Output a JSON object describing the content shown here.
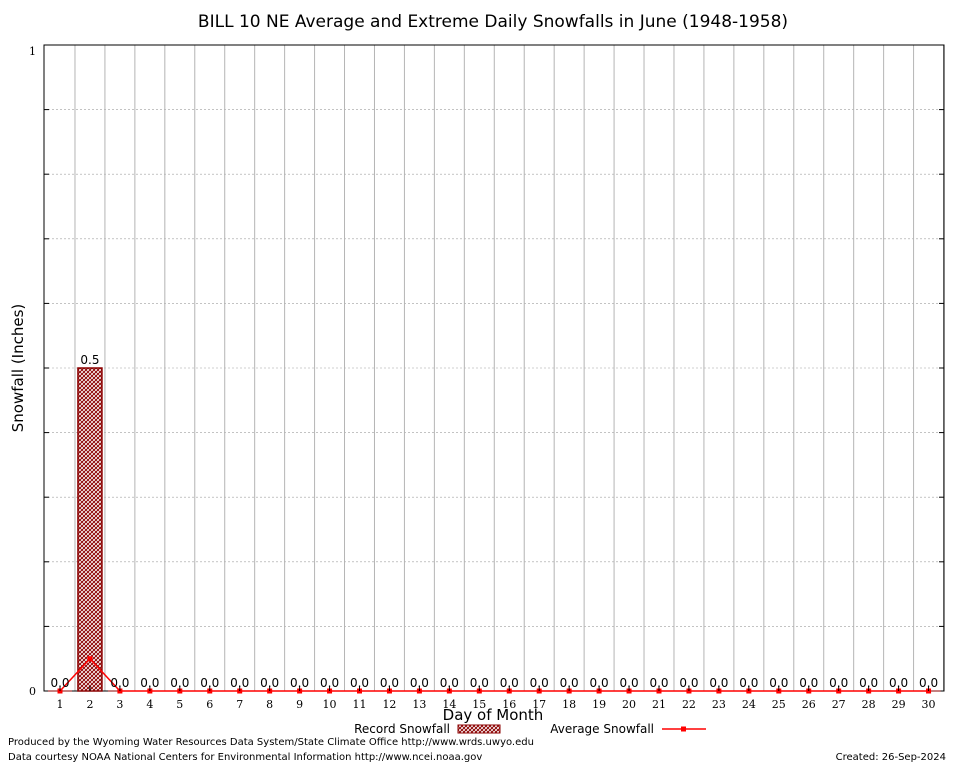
{
  "chart_data": {
    "type": "bar",
    "title": "BILL 10 NE Average and Extreme Daily Snowfalls in June (1948-1958)",
    "xlabel": "Day of Month",
    "ylabel": "Snowfall (Inches)",
    "ylim": [
      0,
      1
    ],
    "y_ticks": [
      "0",
      "1"
    ],
    "categories": [
      "1",
      "2",
      "3",
      "4",
      "5",
      "6",
      "7",
      "8",
      "9",
      "10",
      "11",
      "12",
      "13",
      "14",
      "15",
      "16",
      "17",
      "18",
      "19",
      "20",
      "21",
      "22",
      "23",
      "24",
      "25",
      "26",
      "27",
      "28",
      "29",
      "30"
    ],
    "series": [
      {
        "name": "Record Snowfall",
        "type": "bar",
        "color": "#8b0000",
        "values": [
          0.0,
          0.5,
          0.0,
          0.0,
          0.0,
          0.0,
          0.0,
          0.0,
          0.0,
          0.0,
          0.0,
          0.0,
          0.0,
          0.0,
          0.0,
          0.0,
          0.0,
          0.0,
          0.0,
          0.0,
          0.0,
          0.0,
          0.0,
          0.0,
          0.0,
          0.0,
          0.0,
          0.0,
          0.0,
          0.0
        ],
        "labels": [
          "0.0",
          "0.5",
          "0.0",
          "0.0",
          "0.0",
          "0.0",
          "0.0",
          "0.0",
          "0.0",
          "0.0",
          "0.0",
          "0.0",
          "0.0",
          "0.0",
          "0.0",
          "0.0",
          "0.0",
          "0.0",
          "0.0",
          "0.0",
          "0.0",
          "0.0",
          "0.0",
          "0.0",
          "0.0",
          "0.0",
          "0.0",
          "0.0",
          "0.0",
          "0.0"
        ]
      },
      {
        "name": "Average Snowfall",
        "type": "line",
        "color": "#ff0000",
        "values": [
          0.0,
          0.05,
          0.0,
          0.0,
          0.0,
          0.0,
          0.0,
          0.0,
          0.0,
          0.0,
          0.0,
          0.0,
          0.0,
          0.0,
          0.0,
          0.0,
          0.0,
          0.0,
          0.0,
          0.0,
          0.0,
          0.0,
          0.0,
          0.0,
          0.0,
          0.0,
          0.0,
          0.0,
          0.0,
          0.0
        ]
      }
    ],
    "grid": true,
    "legend_position": "bottom"
  },
  "footer": {
    "credit_line1": "Produced by the Wyoming Water Resources Data System/State Climate Office http://www.wrds.uwyo.edu",
    "credit_line2": "Data courtesy NOAA National Centers for Environmental Information http://www.ncei.noaa.gov",
    "created": "Created:  26-Sep-2024"
  }
}
